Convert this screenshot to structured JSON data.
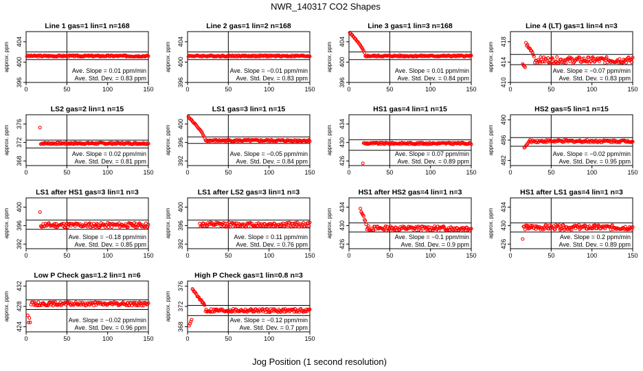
{
  "figure": {
    "title": "NWR_140317  CO2 Shapes",
    "xlabel": "Jog Position (1 second resolution)"
  },
  "colors": {
    "points": "#ff0000",
    "axes": "#000000",
    "background": "#ffffff"
  },
  "chart_data": [
    {
      "type": "scatter",
      "title": "Line 1 gas=1 lin=1 n=168",
      "xlabel": "",
      "ylabel": "approx. ppm",
      "xlim": [
        0,
        150
      ],
      "xticks": [
        0,
        50,
        100,
        150
      ],
      "ylim": [
        396,
        406
      ],
      "yticks": [
        396,
        400,
        404
      ],
      "hlines": [
        400.5,
        402
      ],
      "vline": 50,
      "slope": "Ave. Slope = 0.01  ppm/min",
      "stddev": "Ave. Std. Dev. = 0.83  ppm",
      "x_start": 1,
      "x_end": 150,
      "y_level": 401.2,
      "noise": 0.15,
      "shape": "flat"
    },
    {
      "type": "scatter",
      "title": "Line 2 gas=1 lin=2 n=168",
      "xlabel": "",
      "ylabel": "approx. ppm",
      "xlim": [
        0,
        150
      ],
      "xticks": [
        0,
        50,
        100,
        150
      ],
      "ylim": [
        396,
        406
      ],
      "yticks": [
        396,
        400,
        404
      ],
      "hlines": [
        400.5,
        402
      ],
      "vline": 50,
      "slope": "Ave. Slope = −0.01  ppm/min",
      "stddev": "Ave. Std. Dev. = 0.83  ppm",
      "x_start": 1,
      "x_end": 150,
      "y_level": 401.2,
      "noise": 0.15,
      "shape": "flat"
    },
    {
      "type": "scatter",
      "title": "Line 3 gas=1 lin=3 n=168",
      "xlabel": "",
      "ylabel": "approx. ppm",
      "xlim": [
        0,
        150
      ],
      "xticks": [
        0,
        50,
        100,
        150
      ],
      "ylim": [
        396,
        406
      ],
      "yticks": [
        396,
        400,
        404
      ],
      "hlines": [
        400.5,
        402
      ],
      "vline": 50,
      "slope": "Ave. Slope = 0.01  ppm/min",
      "stddev": "Ave. Std. Dev. = 0.84  ppm",
      "x_start": 1,
      "x_end": 150,
      "y_level": 401.2,
      "noise": 0.15,
      "shape": "decay",
      "peak": 405.8,
      "decay_end": 20
    },
    {
      "type": "scatter",
      "title": "Line 4 (LT) gas=1 lin=4 n=3",
      "xlabel": "",
      "ylabel": "approx. ppm",
      "xlim": [
        0,
        150
      ],
      "xticks": [
        0,
        50,
        100,
        150
      ],
      "ylim": [
        410,
        420
      ],
      "yticks": [
        410,
        414,
        418
      ],
      "hlines": [
        413.5,
        415.5
      ],
      "vline": 50,
      "slope": "Ave. Slope = −0.07  ppm/min",
      "stddev": "Ave. Std. Dev. = 0.83  ppm",
      "x_start": 15,
      "x_end": 150,
      "y_level": 414.4,
      "noise": 0.6,
      "shape": "hump",
      "peak": 418.5,
      "decay_end": 30
    },
    {
      "type": "scatter",
      "title": "LS2 gas=2 lin=1 n=15",
      "xlabel": "",
      "ylabel": "approx. ppm",
      "xlim": [
        0,
        150
      ],
      "xticks": [
        0,
        50,
        100,
        150
      ],
      "ylim": [
        367,
        378
      ],
      "yticks": [
        368,
        372,
        376
      ],
      "hlines": [
        370.8,
        372.5
      ],
      "vline": 50,
      "slope": "Ave. Slope = 0.02  ppm/min",
      "stddev": "Ave. Std. Dev. = 0.81  ppm",
      "x_start": 17,
      "x_end": 150,
      "y_level": 371.8,
      "noise": 0.2,
      "shape": "spike",
      "peak": 375.2
    },
    {
      "type": "scatter",
      "title": "LS1 gas=3 lin=1 n=15",
      "xlabel": "",
      "ylabel": "approx. ppm",
      "xlim": [
        0,
        150
      ],
      "xticks": [
        0,
        50,
        100,
        150
      ],
      "ylim": [
        391,
        402
      ],
      "yticks": [
        392,
        396,
        400
      ],
      "hlines": [
        395.8,
        397.2
      ],
      "vline": 50,
      "slope": "Ave. Slope = −0.05  ppm/min",
      "stddev": "Ave. Std. Dev. = 0.84  ppm",
      "x_start": 1,
      "x_end": 150,
      "y_level": 396.4,
      "noise": 0.2,
      "shape": "decay",
      "peak": 401.5,
      "decay_end": 22
    },
    {
      "type": "scatter",
      "title": "HS1 gas=4 lin=1 n=15",
      "xlabel": "",
      "ylabel": "approx. ppm",
      "xlim": [
        0,
        150
      ],
      "xticks": [
        0,
        50,
        100,
        150
      ],
      "ylim": [
        425,
        436
      ],
      "yticks": [
        426,
        430,
        434
      ],
      "hlines": [
        428.3,
        430.6
      ],
      "vline": 50,
      "slope": "Ave. Slope = 0.07  ppm/min",
      "stddev": "Ave. Std. Dev. = 0.89  ppm",
      "x_start": 17,
      "x_end": 150,
      "y_level": 429.8,
      "noise": 0.2,
      "shape": "dip",
      "low": 425.5
    },
    {
      "type": "scatter",
      "title": "HS2 gas=5 lin=1 n=15",
      "xlabel": "",
      "ylabel": "approx. ppm",
      "xlim": [
        0,
        150
      ],
      "xticks": [
        0,
        50,
        100,
        150
      ],
      "ylim": [
        481,
        491
      ],
      "yticks": [
        482,
        486,
        490
      ],
      "hlines": [
        484.8,
        486.5
      ],
      "vline": 50,
      "slope": "Ave. Slope = −0.02  ppm/min",
      "stddev": "Ave. Std. Dev. = 0.95  ppm",
      "x_start": 17,
      "x_end": 150,
      "y_level": 485.8,
      "noise": 0.25,
      "shape": "riseup",
      "low": 484.5
    },
    {
      "type": "scatter",
      "title": "LS1 after HS1 gas=3 lin=1 n=3",
      "xlabel": "",
      "ylabel": "approx. ppm",
      "xlim": [
        0,
        150
      ],
      "xticks": [
        0,
        50,
        100,
        150
      ],
      "ylim": [
        391,
        402
      ],
      "yticks": [
        392,
        396,
        400
      ],
      "hlines": [
        395.2,
        397.2
      ],
      "vline": 50,
      "slope": "Ave. Slope = −0.18  ppm/min",
      "stddev": "Ave. Std. Dev. = 0.85  ppm",
      "x_start": 17,
      "x_end": 150,
      "y_level": 396.1,
      "noise": 0.5,
      "shape": "spike",
      "peak": 398.9
    },
    {
      "type": "scatter",
      "title": "LS1 after LS2 gas=3 lin=1 n=3",
      "xlabel": "",
      "ylabel": "approx. ppm",
      "xlim": [
        0,
        150
      ],
      "xticks": [
        0,
        50,
        100,
        150
      ],
      "ylim": [
        391,
        402
      ],
      "yticks": [
        392,
        396,
        400
      ],
      "hlines": [
        395.5,
        397.2
      ],
      "vline": 50,
      "slope": "Ave. Slope = 0.11  ppm/min",
      "stddev": "Ave. Std. Dev. = 0.76  ppm",
      "x_start": 15,
      "x_end": 150,
      "y_level": 396.2,
      "noise": 0.5,
      "shape": "flat"
    },
    {
      "type": "scatter",
      "title": "HS1 after HS2 gas=4 lin=1 n=3",
      "xlabel": "",
      "ylabel": "approx. ppm",
      "xlim": [
        0,
        150
      ],
      "xticks": [
        0,
        50,
        100,
        150
      ],
      "ylim": [
        425,
        436
      ],
      "yticks": [
        426,
        430,
        434
      ],
      "hlines": [
        428.6,
        430.6
      ],
      "vline": 50,
      "slope": "Ave. Slope = −0.1  ppm/min",
      "stddev": "Ave. Std. Dev. = 0.9  ppm",
      "x_start": 14,
      "x_end": 150,
      "y_level": 429.4,
      "noise": 0.5,
      "shape": "decay",
      "peak": 433.5,
      "decay_end": 22
    },
    {
      "type": "scatter",
      "title": "HS1 after LS1 gas=4 lin=1 n=3",
      "xlabel": "",
      "ylabel": "approx. ppm",
      "xlim": [
        0,
        150
      ],
      "xticks": [
        0,
        50,
        100,
        150
      ],
      "ylim": [
        425,
        436
      ],
      "yticks": [
        426,
        430,
        434
      ],
      "hlines": [
        428.6,
        430.6
      ],
      "vline": 50,
      "slope": "Ave. Slope = 0.2  ppm/min",
      "stddev": "Ave. Std. Dev. = 0.89  ppm",
      "x_start": 15,
      "x_end": 150,
      "y_level": 429.6,
      "noise": 0.5,
      "shape": "dip",
      "low": 427.1
    },
    {
      "type": "scatter",
      "title": "Low P Check gas=1.2 lin=1 n=6",
      "xlabel": "",
      "ylabel": "approx. ppm",
      "xlim": [
        0,
        150
      ],
      "xticks": [
        0,
        50,
        100,
        150
      ],
      "ylim": [
        423,
        433
      ],
      "yticks": [
        424,
        428,
        432
      ],
      "hlines": [
        427.4,
        429.3
      ],
      "vline": 50,
      "slope": "Ave. Slope = −0.02  ppm/min",
      "stddev": "Ave. Std. Dev. = 0.96  ppm",
      "x_start": 2,
      "x_end": 150,
      "y_level": 428.5,
      "noise": 0.35,
      "shape": "earlydip",
      "low": 424.8
    },
    {
      "type": "scatter",
      "title": "High P Check gas=1 lin=0.8 n=3",
      "xlabel": "",
      "ylabel": "approx. ppm",
      "xlim": [
        0,
        150
      ],
      "xticks": [
        0,
        50,
        100,
        150
      ],
      "ylim": [
        367,
        377
      ],
      "yticks": [
        368,
        372,
        376
      ],
      "hlines": [
        370.2,
        372.2
      ],
      "vline": 50,
      "slope": "Ave. Slope = −0.12  ppm/min",
      "stddev": "Ave. Std. Dev. = 0.7  ppm",
      "x_start": 2,
      "x_end": 150,
      "y_level": 371.2,
      "noise": 0.35,
      "shape": "overshoot",
      "peak": 375.3,
      "low": 368.2
    }
  ]
}
